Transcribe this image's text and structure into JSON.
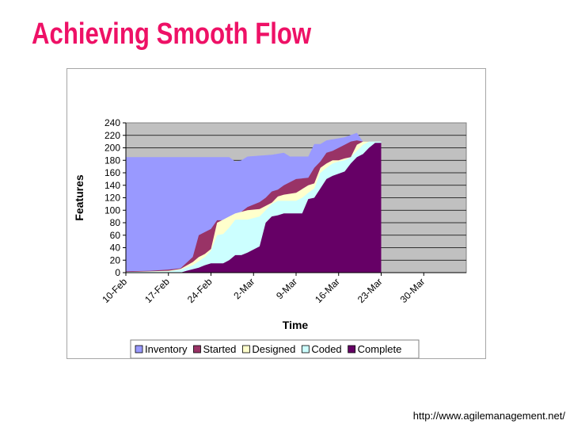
{
  "slide": {
    "title": "Achieving Smooth Flow",
    "footer_url": "http://www.agilemanagement.net/",
    "title_color": "#ee1166"
  },
  "chart_data": {
    "type": "area",
    "stacked": false,
    "title": "",
    "xlabel": "Time",
    "ylabel": "Features",
    "ylim": [
      0,
      240
    ],
    "yticks": [
      0,
      20,
      40,
      60,
      80,
      100,
      120,
      140,
      160,
      180,
      200,
      220,
      240
    ],
    "xlim": [
      "10-Feb",
      "6-Apr"
    ],
    "xticks": [
      "10-Feb",
      "17-Feb",
      "24-Feb",
      "2-Mar",
      "9-Mar",
      "16-Mar",
      "23-Mar",
      "30-Mar"
    ],
    "grid": true,
    "legend_position": "bottom",
    "plot_background": "#c0c0c0",
    "series": [
      {
        "name": "Inventory",
        "color": "#9999ff",
        "points": [
          [
            "10-Feb",
            185
          ],
          [
            "27-Feb",
            185
          ],
          [
            "28-Feb",
            178
          ],
          [
            "29-Feb",
            180
          ],
          [
            "1-Mar",
            186
          ],
          [
            "5-Mar",
            189
          ],
          [
            "7-Mar",
            192
          ],
          [
            "8-Mar",
            186
          ],
          [
            "11-Mar",
            186
          ],
          [
            "12-Mar",
            206
          ],
          [
            "13-Mar",
            206
          ],
          [
            "14-Mar",
            212
          ],
          [
            "17-Mar",
            217
          ],
          [
            "19-Mar",
            224
          ],
          [
            "20-Mar",
            210
          ],
          [
            "23-Mar",
            210
          ]
        ]
      },
      {
        "name": "Started",
        "color": "#993366",
        "points": [
          [
            "10-Feb",
            2
          ],
          [
            "14-Feb",
            3
          ],
          [
            "17-Feb",
            5
          ],
          [
            "19-Feb",
            7
          ],
          [
            "21-Feb",
            25
          ],
          [
            "22-Feb",
            60
          ],
          [
            "24-Feb",
            70
          ],
          [
            "25-Feb",
            84
          ],
          [
            "27-Feb",
            84
          ],
          [
            "28-Feb",
            90
          ],
          [
            "1-Mar",
            105
          ],
          [
            "3-Mar",
            113
          ],
          [
            "4-Mar",
            120
          ],
          [
            "5-Mar",
            130
          ],
          [
            "6-Mar",
            133
          ],
          [
            "7-Mar",
            140
          ],
          [
            "9-Mar",
            150
          ],
          [
            "11-Mar",
            152
          ],
          [
            "12-Mar",
            168
          ],
          [
            "13-Mar",
            178
          ],
          [
            "14-Mar",
            192
          ],
          [
            "15-Mar",
            195
          ],
          [
            "16-Mar",
            200
          ],
          [
            "17-Mar",
            205
          ],
          [
            "18-Mar",
            210
          ],
          [
            "19-Mar",
            212
          ],
          [
            "20-Mar",
            210
          ],
          [
            "23-Mar",
            210
          ]
        ]
      },
      {
        "name": "Designed",
        "color": "#ffffcc",
        "points": [
          [
            "10-Feb",
            1
          ],
          [
            "17-Feb",
            3
          ],
          [
            "19-Feb",
            6
          ],
          [
            "21-Feb",
            17
          ],
          [
            "22-Feb",
            25
          ],
          [
            "23-Feb",
            30
          ],
          [
            "24-Feb",
            38
          ],
          [
            "25-Feb",
            80
          ],
          [
            "26-Feb",
            85
          ],
          [
            "27-Feb",
            90
          ],
          [
            "28-Feb",
            95
          ],
          [
            "1-Mar",
            100
          ],
          [
            "3-Mar",
            102
          ],
          [
            "5-Mar",
            112
          ],
          [
            "6-Mar",
            122
          ],
          [
            "7-Mar",
            125
          ],
          [
            "9-Mar",
            128
          ],
          [
            "11-Mar",
            140
          ],
          [
            "12-Mar",
            143
          ],
          [
            "13-Mar",
            168
          ],
          [
            "14-Mar",
            175
          ],
          [
            "15-Mar",
            180
          ],
          [
            "16-Mar",
            180
          ],
          [
            "17-Mar",
            183
          ],
          [
            "18-Mar",
            185
          ],
          [
            "19-Mar",
            205
          ],
          [
            "20-Mar",
            210
          ],
          [
            "23-Mar",
            210
          ]
        ]
      },
      {
        "name": "Coded",
        "color": "#ccffff",
        "points": [
          [
            "10-Feb",
            1
          ],
          [
            "17-Feb",
            2
          ],
          [
            "19-Feb",
            5
          ],
          [
            "21-Feb",
            12
          ],
          [
            "23-Feb",
            25
          ],
          [
            "24-Feb",
            35
          ],
          [
            "25-Feb",
            60
          ],
          [
            "26-Feb",
            62
          ],
          [
            "27-Feb",
            72
          ],
          [
            "28-Feb",
            85
          ],
          [
            "1-Mar",
            85
          ],
          [
            "3-Mar",
            90
          ],
          [
            "4-Mar",
            100
          ],
          [
            "5-Mar",
            110
          ],
          [
            "6-Mar",
            115
          ],
          [
            "9-Mar",
            115
          ],
          [
            "10-Mar",
            120
          ],
          [
            "11-Mar",
            128
          ],
          [
            "12-Mar",
            135
          ],
          [
            "13-Mar",
            160
          ],
          [
            "14-Mar",
            168
          ],
          [
            "15-Mar",
            175
          ],
          [
            "16-Mar",
            178
          ],
          [
            "17-Mar",
            180
          ],
          [
            "18-Mar",
            185
          ],
          [
            "19-Mar",
            195
          ],
          [
            "20-Mar",
            205
          ],
          [
            "21-Mar",
            210
          ],
          [
            "23-Mar",
            210
          ]
        ]
      },
      {
        "name": "Complete",
        "color": "#660066",
        "points": [
          [
            "10-Feb",
            0
          ],
          [
            "19-Feb",
            0
          ],
          [
            "20-Feb",
            3
          ],
          [
            "22-Feb",
            8
          ],
          [
            "23-Feb",
            12
          ],
          [
            "24-Feb",
            15
          ],
          [
            "26-Feb",
            15
          ],
          [
            "27-Feb",
            20
          ],
          [
            "28-Feb",
            28
          ],
          [
            "29-Feb",
            28
          ],
          [
            "1-Mar",
            32
          ],
          [
            "3-Mar",
            42
          ],
          [
            "4-Mar",
            80
          ],
          [
            "5-Mar",
            90
          ],
          [
            "6-Mar",
            92
          ],
          [
            "7-Mar",
            95
          ],
          [
            "10-Mar",
            95
          ],
          [
            "11-Mar",
            118
          ],
          [
            "12-Mar",
            120
          ],
          [
            "13-Mar",
            135
          ],
          [
            "14-Mar",
            150
          ],
          [
            "15-Mar",
            155
          ],
          [
            "17-Mar",
            162
          ],
          [
            "18-Mar",
            175
          ],
          [
            "19-Mar",
            185
          ],
          [
            "20-Mar",
            190
          ],
          [
            "21-Mar",
            200
          ],
          [
            "22-Mar",
            208
          ],
          [
            "23-Mar",
            208
          ]
        ]
      }
    ]
  }
}
